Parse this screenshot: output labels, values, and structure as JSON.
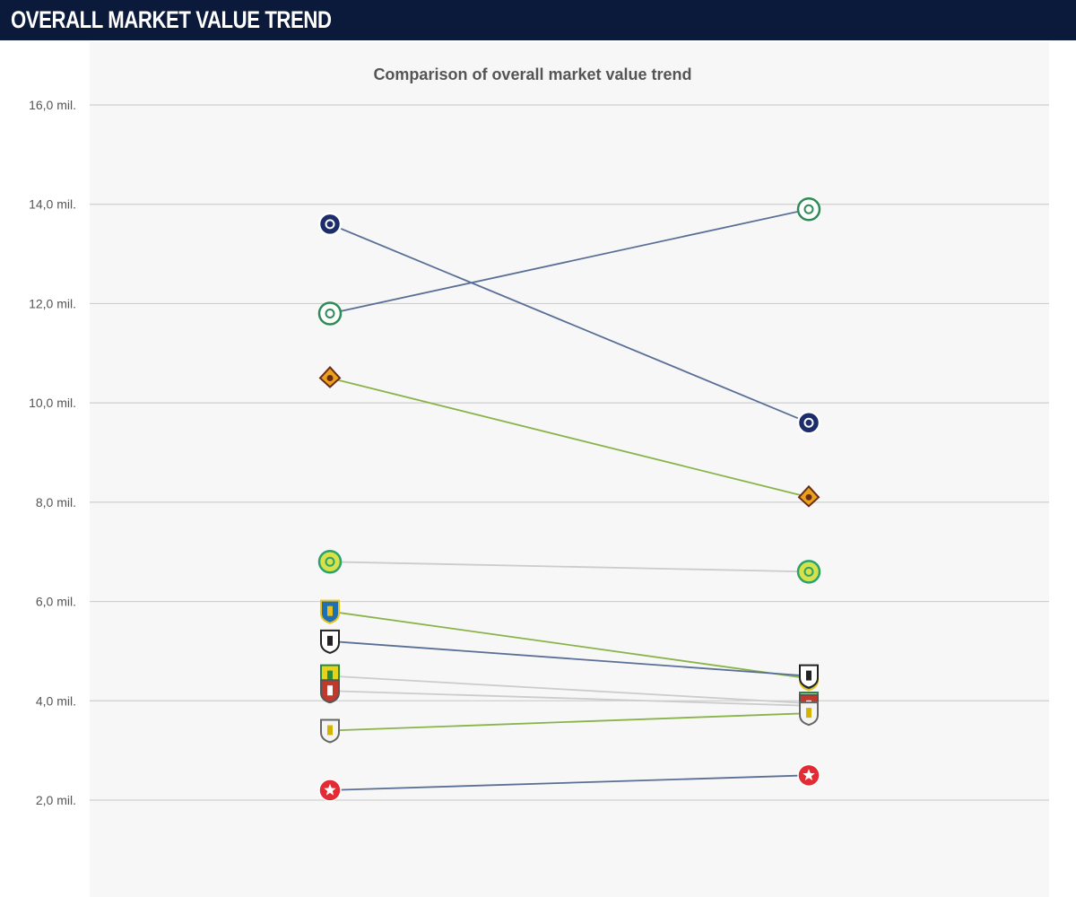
{
  "header": {
    "title": "OVERALL MARKET VALUE TREND"
  },
  "chart_data": {
    "type": "line",
    "title": "Comparison of overall market value trend",
    "xlabel": "",
    "ylabel": "",
    "x": [
      0,
      1
    ],
    "ylim": [
      0,
      16
    ],
    "yticks": [
      2,
      4,
      6,
      8,
      10,
      12,
      14,
      16
    ],
    "ytick_labels": [
      "2,0 mil.",
      "4,0 mil.",
      "6,0 mil.",
      "8,0 mil.",
      "10,0 mil.",
      "12,0 mil.",
      "14,0 mil.",
      "16,0 mil."
    ],
    "grid": true,
    "series": [
      {
        "values": [
          13.6,
          9.6
        ],
        "color": "#5a6f96",
        "icon": "navy-crest-icon"
      },
      {
        "values": [
          11.8,
          13.9
        ],
        "color": "#5a6f96",
        "icon": "green-crest-icon"
      },
      {
        "values": [
          10.5,
          8.1
        ],
        "color": "#8ab34a",
        "icon": "orange-crest-icon"
      },
      {
        "values": [
          6.8,
          6.6
        ],
        "color": "#cccccc",
        "icon": "yellow-green-crest-icon"
      },
      {
        "values": [
          5.8,
          4.45
        ],
        "color": "#8ab34a",
        "icon": "blue-shield-crest-icon"
      },
      {
        "values": [
          5.2,
          4.5
        ],
        "color": "#5a6f96",
        "icon": "striped-crest-icon"
      },
      {
        "values": [
          4.5,
          3.95
        ],
        "color": "#cccccc",
        "icon": "yellow-shield-crest-icon"
      },
      {
        "values": [
          4.2,
          3.9
        ],
        "color": "#cccccc",
        "icon": "red-crest-icon"
      },
      {
        "values": [
          3.4,
          3.75
        ],
        "color": "#8ab34a",
        "icon": "yellow-black-crest-icon"
      },
      {
        "values": [
          2.2,
          2.5
        ],
        "color": "#5a6f96",
        "icon": "red-star-crest-icon"
      }
    ]
  }
}
